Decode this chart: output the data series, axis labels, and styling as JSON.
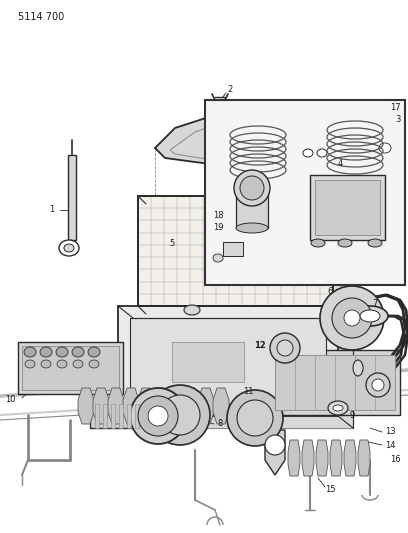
{
  "title": "5114 700",
  "bg_color": "#ffffff",
  "fg_color": "#1a1a1a",
  "figsize": [
    4.08,
    5.33
  ],
  "dpi": 100,
  "line_color": "#2a2a2a",
  "gray_dark": "#555555",
  "gray_mid": "#888888",
  "gray_light": "#bbbbbb",
  "gray_fill": "#d8d8d8",
  "white": "#ffffff",
  "label_fs": 6.0,
  "title_fs": 7.0
}
